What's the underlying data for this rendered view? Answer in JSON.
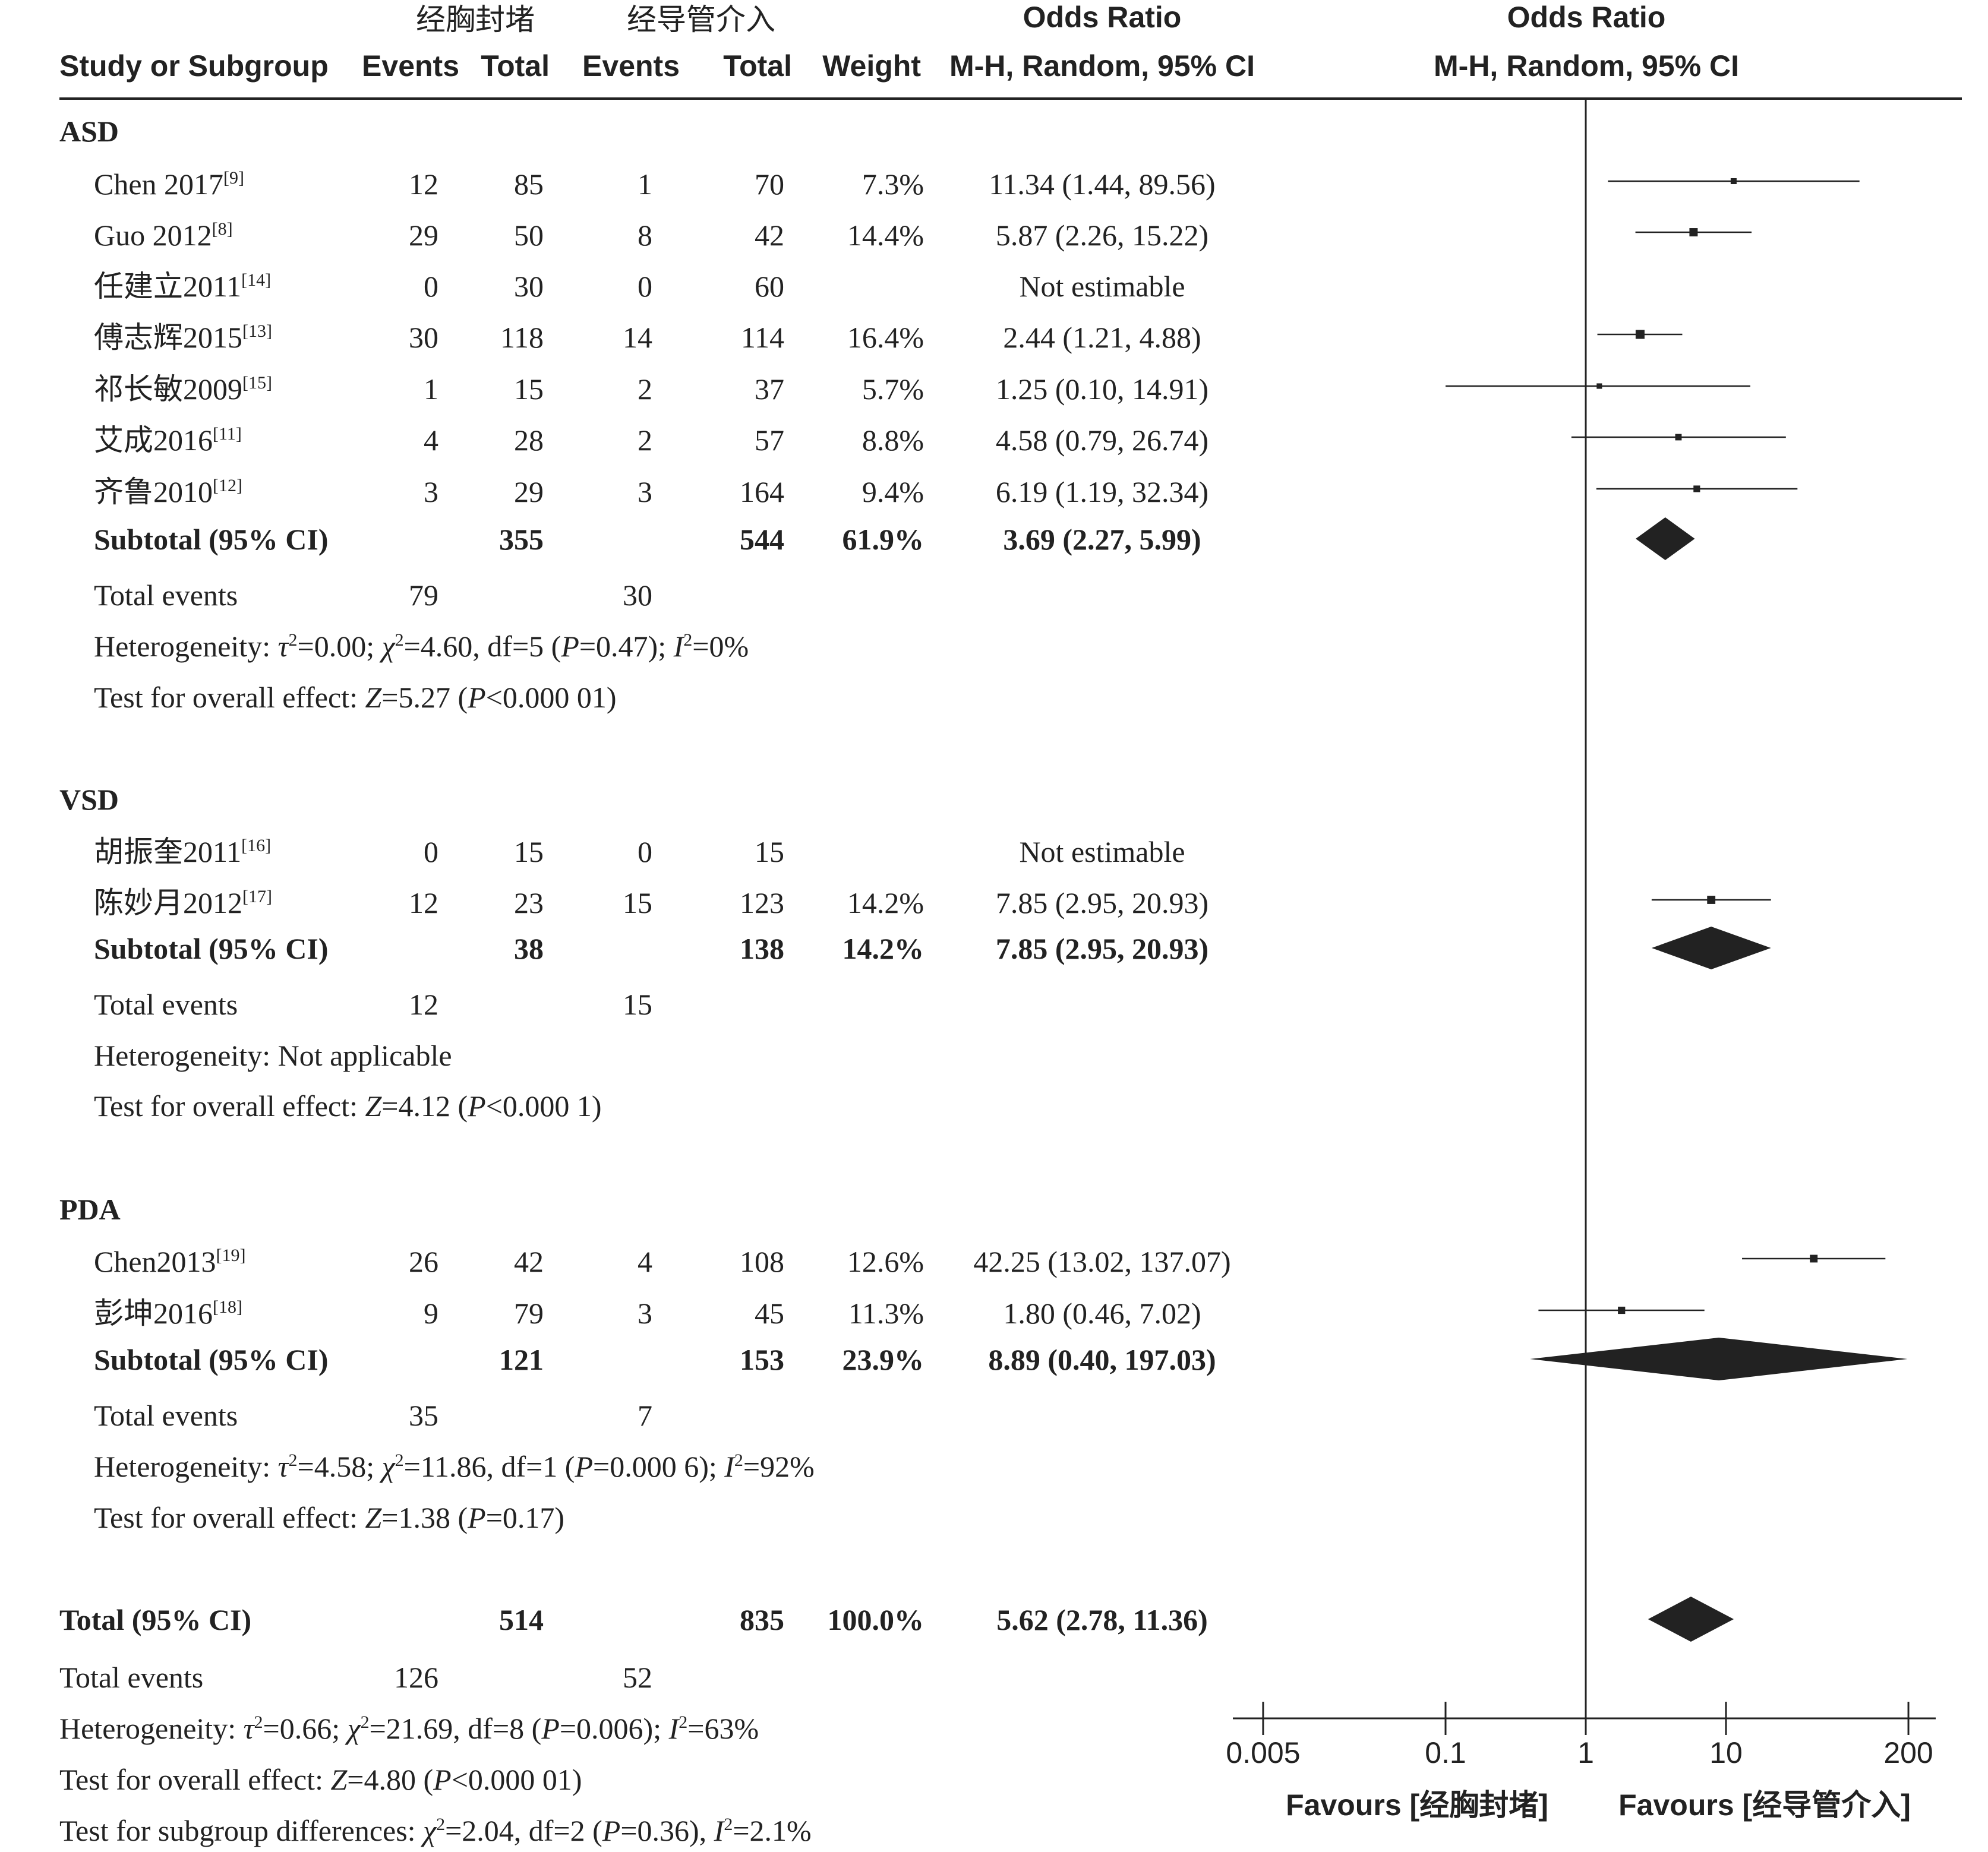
{
  "header": {
    "group1": "经胸封堵",
    "group2": "经导管介入",
    "study_col": "Study or Subgroup",
    "events": "Events",
    "total": "Total",
    "weight": "Weight",
    "or_title": "Odds Ratio",
    "or_method": "M-H, Random, 95% CI"
  },
  "chart_data": {
    "type": "forest",
    "measure": "Odds Ratio",
    "method": "M-H, Random, 95% CI",
    "scale": "log",
    "xlim": [
      0.005,
      200
    ],
    "ticks": [
      {
        "value": 0.005,
        "label": "0.005"
      },
      {
        "value": 0.1,
        "label": "0.1"
      },
      {
        "value": 1,
        "label": "1"
      },
      {
        "value": 10,
        "label": "10"
      },
      {
        "value": 200,
        "label": "200"
      }
    ],
    "favours_left": "Favours [经胸封堵]",
    "favours_right": "Favours [经导管介入]",
    "subgroups": [
      {
        "name": "ASD",
        "studies": [
          {
            "study": "Chen 2017",
            "ref": "[9]",
            "e1": "12",
            "t1": "85",
            "e2": "1",
            "t2": "70",
            "weight": "7.3%",
            "ci_text": "11.34 (1.44, 89.56)",
            "or": 11.34,
            "lo": 1.44,
            "hi": 89.56
          },
          {
            "study": "Guo 2012",
            "ref": "[8]",
            "e1": "29",
            "t1": "50",
            "e2": "8",
            "t2": "42",
            "weight": "14.4%",
            "ci_text": "5.87 (2.26, 15.22)",
            "or": 5.87,
            "lo": 2.26,
            "hi": 15.22
          },
          {
            "study": "任建立2011",
            "ref": "[14]",
            "e1": "0",
            "t1": "30",
            "e2": "0",
            "t2": "60",
            "weight": "",
            "ci_text": "Not estimable",
            "or": null,
            "lo": null,
            "hi": null
          },
          {
            "study": "傅志辉2015",
            "ref": "[13]",
            "e1": "30",
            "t1": "118",
            "e2": "14",
            "t2": "114",
            "weight": "16.4%",
            "ci_text": "2.44 (1.21, 4.88)",
            "or": 2.44,
            "lo": 1.21,
            "hi": 4.88
          },
          {
            "study": "祁长敏2009",
            "ref": "[15]",
            "e1": "1",
            "t1": "15",
            "e2": "2",
            "t2": "37",
            "weight": "5.7%",
            "ci_text": "1.25 (0.10, 14.91)",
            "or": 1.25,
            "lo": 0.1,
            "hi": 14.91
          },
          {
            "study": "艾成2016",
            "ref": "[11]",
            "e1": "4",
            "t1": "28",
            "e2": "2",
            "t2": "57",
            "weight": "8.8%",
            "ci_text": "4.58 (0.79, 26.74)",
            "or": 4.58,
            "lo": 0.79,
            "hi": 26.74
          },
          {
            "study": "齐鲁2010",
            "ref": "[12]",
            "e1": "3",
            "t1": "29",
            "e2": "3",
            "t2": "164",
            "weight": "9.4%",
            "ci_text": "6.19 (1.19, 32.34)",
            "or": 6.19,
            "lo": 1.19,
            "hi": 32.34
          }
        ],
        "subtotal": {
          "label": "Subtotal (95% CI)",
          "t1": "355",
          "t2": "544",
          "weight": "61.9%",
          "ci_text": "3.69 (2.27, 5.99)",
          "or": 3.69,
          "lo": 2.27,
          "hi": 5.99
        },
        "total_events": {
          "label": "Total events",
          "e1": "79",
          "e2": "30"
        },
        "heterogeneity": "Heterogeneity: τ²=0.00; χ²=4.60, df=5 (P=0.47); I²=0%",
        "overall": "Test for overall effect: Z=5.27 (P<0.000 01)"
      },
      {
        "name": "VSD",
        "studies": [
          {
            "study": "胡振奎2011",
            "ref": "[16]",
            "e1": "0",
            "t1": "15",
            "e2": "0",
            "t2": "15",
            "weight": "",
            "ci_text": "Not estimable",
            "or": null,
            "lo": null,
            "hi": null
          },
          {
            "study": "陈妙月2012",
            "ref": "[17]",
            "e1": "12",
            "t1": "23",
            "e2": "15",
            "t2": "123",
            "weight": "14.2%",
            "ci_text": "7.85 (2.95, 20.93)",
            "or": 7.85,
            "lo": 2.95,
            "hi": 20.93
          }
        ],
        "subtotal": {
          "label": "Subtotal (95% CI)",
          "t1": "38",
          "t2": "138",
          "weight": "14.2%",
          "ci_text": "7.85 (2.95, 20.93)",
          "or": 7.85,
          "lo": 2.95,
          "hi": 20.93
        },
        "total_events": {
          "label": "Total events",
          "e1": "12",
          "e2": "15"
        },
        "heterogeneity": "Heterogeneity: Not applicable",
        "overall": "Test for overall effect: Z=4.12 (P<0.000 1)"
      },
      {
        "name": "PDA",
        "studies": [
          {
            "study": "Chen2013",
            "ref": "[19]",
            "e1": "26",
            "t1": "42",
            "e2": "4",
            "t2": "108",
            "weight": "12.6%",
            "ci_text": "42.25 (13.02, 137.07)",
            "or": 42.25,
            "lo": 13.02,
            "hi": 137.07
          },
          {
            "study": "彭坤2016",
            "ref": "[18]",
            "e1": "9",
            "t1": "79",
            "e2": "3",
            "t2": "45",
            "weight": "11.3%",
            "ci_text": "1.80 (0.46, 7.02)",
            "or": 1.8,
            "lo": 0.46,
            "hi": 7.02
          }
        ],
        "subtotal": {
          "label": "Subtotal (95% CI)",
          "t1": "121",
          "t2": "153",
          "weight": "23.9%",
          "ci_text": "8.89 (0.40, 197.03)",
          "or": 8.89,
          "lo": 0.4,
          "hi": 197.03
        },
        "total_events": {
          "label": "Total events",
          "e1": "35",
          "e2": "7"
        },
        "heterogeneity": "Heterogeneity: τ²=4.58; χ²=11.86, df=1 (P=0.000 6); I²=92%",
        "overall": "Test for overall effect: Z=1.38 (P=0.17)"
      }
    ],
    "total": {
      "label": "Total (95% CI)",
      "t1": "514",
      "t2": "835",
      "weight": "100.0%",
      "ci_text": "5.62 (2.78, 11.36)",
      "or": 5.62,
      "lo": 2.78,
      "hi": 11.36
    },
    "total_events": {
      "label": "Total events",
      "e1": "126",
      "e2": "52"
    },
    "heterogeneity": "Heterogeneity: τ²=0.66; χ²=21.69, df=8 (P=0.006); I²=63%",
    "overall": "Test for overall effect: Z=4.80 (P<0.000 01)",
    "subgroup_diff": "Test for subgroup differences: χ²=2.04, df=2 (P=0.36), I²=2.1%"
  }
}
